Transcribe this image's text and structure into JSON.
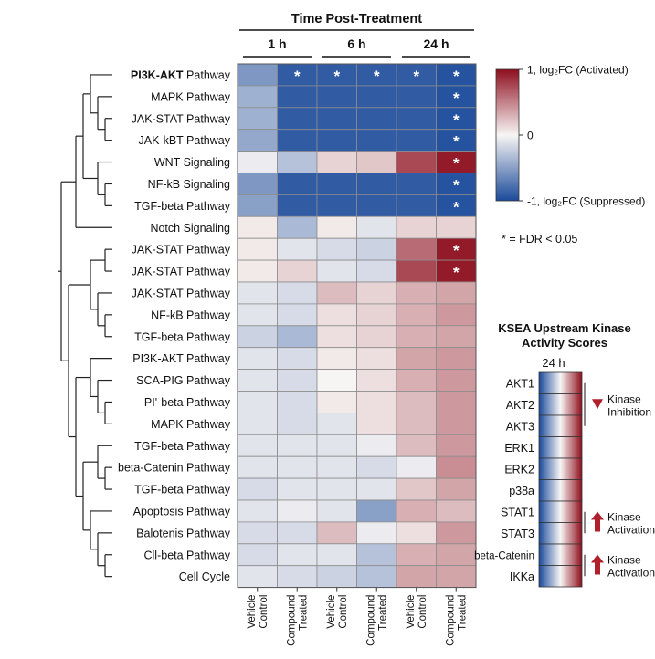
{
  "chart_data": {
    "type": "heatmap",
    "title": "Time Post-Treatment",
    "time_points": [
      "1 h",
      "6 h",
      "24 h"
    ],
    "conditions": [
      "Vehicle Control",
      "Compound Treated",
      "Vehicle Control",
      "Compound Treated",
      "Vehicle Control",
      "Compound Treated"
    ],
    "rows": [
      {
        "label_bold": "PI3K-AKT",
        "label": " Pathway",
        "values": [
          -0.55,
          -0.9,
          -0.9,
          -0.9,
          -0.9,
          -0.95
        ],
        "sig": [
          false,
          true,
          true,
          true,
          true,
          true
        ]
      },
      {
        "label_bold": "",
        "label": "MAPK Pathway",
        "values": [
          -0.4,
          -0.9,
          -0.9,
          -0.9,
          -0.9,
          -0.95
        ],
        "sig": [
          false,
          false,
          false,
          false,
          false,
          true
        ]
      },
      {
        "label_bold": "",
        "label": "JAK-STAT Pathway",
        "values": [
          -0.4,
          -0.9,
          -0.9,
          -0.9,
          -0.9,
          -0.95
        ],
        "sig": [
          false,
          false,
          false,
          false,
          false,
          true
        ]
      },
      {
        "label_bold": "",
        "label": "JAK-kBT Pathway",
        "values": [
          -0.45,
          -0.9,
          -0.9,
          -0.9,
          -0.9,
          -0.95
        ],
        "sig": [
          false,
          false,
          false,
          false,
          false,
          true
        ]
      },
      {
        "label_bold": "",
        "label": "WNT Signaling",
        "values": [
          -0.05,
          -0.3,
          0.15,
          0.2,
          0.75,
          0.95
        ],
        "sig": [
          false,
          false,
          false,
          false,
          false,
          true
        ]
      },
      {
        "label_bold": "",
        "label": "NF-kB Signaling",
        "values": [
          -0.55,
          -0.9,
          -0.9,
          -0.9,
          -0.9,
          -0.95
        ],
        "sig": [
          false,
          false,
          false,
          false,
          false,
          true
        ]
      },
      {
        "label_bold": "",
        "label": "TGF-beta Pathway",
        "values": [
          -0.5,
          -0.9,
          -0.9,
          -0.9,
          -0.9,
          -0.95
        ],
        "sig": [
          false,
          false,
          false,
          false,
          false,
          true
        ]
      },
      {
        "label_bold": "",
        "label": "Notch Signaling",
        "values": [
          0.05,
          -0.35,
          0.05,
          -0.1,
          0.15,
          0.15
        ],
        "sig": [
          false,
          false,
          false,
          false,
          false,
          false
        ]
      },
      {
        "label_bold": "",
        "label": "JAK-STAT Pathway",
        "values": [
          0.05,
          -0.1,
          -0.15,
          -0.2,
          0.6,
          0.95
        ],
        "sig": [
          false,
          false,
          false,
          false,
          false,
          true
        ]
      },
      {
        "label_bold": "",
        "label": "JAK-STAT Pathway",
        "values": [
          0.05,
          0.15,
          -0.1,
          -0.15,
          0.75,
          0.95
        ],
        "sig": [
          false,
          false,
          false,
          false,
          false,
          true
        ]
      },
      {
        "label_bold": "",
        "label": "JAK-STAT Pathway",
        "values": [
          -0.1,
          -0.15,
          0.25,
          0.15,
          0.3,
          0.35
        ],
        "sig": [
          false,
          false,
          false,
          false,
          false,
          false
        ]
      },
      {
        "label_bold": "",
        "label": "NF-kB Pathway",
        "values": [
          -0.1,
          -0.15,
          0.1,
          0.15,
          0.3,
          0.4
        ],
        "sig": [
          false,
          false,
          false,
          false,
          false,
          false
        ]
      },
      {
        "label_bold": "",
        "label": "TGF-beta Pathway",
        "values": [
          -0.2,
          -0.35,
          0.1,
          0.15,
          0.3,
          0.35
        ],
        "sig": [
          false,
          false,
          false,
          false,
          false,
          false
        ]
      },
      {
        "label_bold": "",
        "label": "PI3K-AKT Pathway",
        "values": [
          -0.1,
          -0.15,
          0.05,
          0.1,
          0.35,
          0.4
        ],
        "sig": [
          false,
          false,
          false,
          false,
          false,
          false
        ]
      },
      {
        "label_bold": "",
        "label": "SCA-PIG Pathway",
        "values": [
          -0.1,
          -0.15,
          0.0,
          0.1,
          0.3,
          0.4
        ],
        "sig": [
          false,
          false,
          false,
          false,
          false,
          false
        ]
      },
      {
        "label_bold": "",
        "label": "PI'-beta Pathway",
        "values": [
          -0.1,
          -0.15,
          0.05,
          0.1,
          0.25,
          0.4
        ],
        "sig": [
          false,
          false,
          false,
          false,
          false,
          false
        ]
      },
      {
        "label_bold": "",
        "label": "MAPK Pathway",
        "values": [
          -0.1,
          -0.15,
          -0.1,
          0.1,
          0.25,
          0.4
        ],
        "sig": [
          false,
          false,
          false,
          false,
          false,
          false
        ]
      },
      {
        "label_bold": "",
        "label": "TGF-beta Pathway",
        "values": [
          -0.1,
          -0.1,
          -0.1,
          -0.05,
          0.25,
          0.4
        ],
        "sig": [
          false,
          false,
          false,
          false,
          false,
          false
        ]
      },
      {
        "label_bold": "",
        "label": "beta-Catenin Pathway",
        "values": [
          -0.1,
          -0.1,
          -0.1,
          -0.15,
          -0.05,
          0.45
        ],
        "sig": [
          false,
          false,
          false,
          false,
          false,
          false
        ]
      },
      {
        "label_bold": "",
        "label": "TGF-beta Pathway",
        "values": [
          -0.15,
          -0.1,
          -0.1,
          -0.1,
          0.2,
          0.35
        ],
        "sig": [
          false,
          false,
          false,
          false,
          false,
          false
        ]
      },
      {
        "label_bold": "",
        "label": "Apoptosis Pathway",
        "values": [
          -0.1,
          -0.05,
          -0.1,
          -0.5,
          0.3,
          0.25
        ],
        "sig": [
          false,
          false,
          false,
          false,
          false,
          false
        ]
      },
      {
        "label_bold": "",
        "label": "Balotenis Pathway",
        "values": [
          -0.15,
          -0.15,
          0.25,
          -0.05,
          0.1,
          0.4
        ],
        "sig": [
          false,
          false,
          false,
          false,
          false,
          false
        ]
      },
      {
        "label_bold": "",
        "label": "Cll-beta Pathway",
        "values": [
          -0.15,
          -0.1,
          -0.1,
          -0.3,
          0.3,
          0.35
        ],
        "sig": [
          false,
          false,
          false,
          false,
          false,
          false
        ]
      },
      {
        "label_bold": "",
        "label": "Cell Cycle",
        "values": [
          -0.1,
          -0.15,
          -0.2,
          -0.3,
          0.35,
          0.35
        ],
        "sig": [
          false,
          false,
          false,
          false,
          false,
          false
        ]
      }
    ],
    "colorbar": {
      "max_label": "1, log₂FC (Activated)",
      "mid_label": "0",
      "min_label": "-1, log₂FC (Suppressed)",
      "range": [
        -1,
        1
      ],
      "low_color": "#1b4a9a",
      "mid_color": "#f7f5f4",
      "high_color": "#8e0f1e"
    },
    "significance_note": "* = FDR < 0.05",
    "ksea": {
      "title_line1": "KSEA Upstream Kinase",
      "title_line2": "Activity Scores",
      "time": "24 h",
      "kinases": [
        "AKT1",
        "AKT2",
        "AKT3",
        "ERK1",
        "ERK2",
        "p38a",
        "STAT1",
        "STAT3",
        "beta-Catenin",
        "IKKa"
      ],
      "annotations": [
        {
          "line1": "Kinase",
          "line2": "Inhibition",
          "direction": "down"
        },
        {
          "line1": "Kinase",
          "line2": "Activation",
          "direction": "up"
        },
        {
          "line1": "Kinase",
          "line2": "Activation",
          "direction": "up"
        }
      ]
    }
  }
}
